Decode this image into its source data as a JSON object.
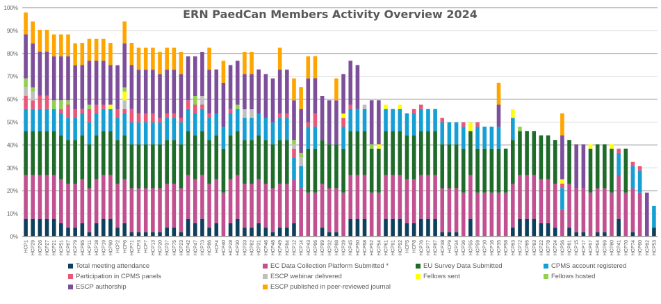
{
  "chart_data": {
    "type": "bar",
    "stacked": true,
    "title": "ERN PaedCan Members Activity Overview 2024",
    "xlabel": "",
    "ylabel": "",
    "ylim": [
      0,
      100
    ],
    "yticks": [
      "0%",
      "10%",
      "20%",
      "30%",
      "40%",
      "50%",
      "60%",
      "70%",
      "80%",
      "90%",
      "100%"
    ],
    "grid": true,
    "legend_position": "bottom",
    "categories": [
      "HCP1",
      "HCP29",
      "HCP26",
      "HCP27",
      "HCP21",
      "HCP51",
      "HCP67",
      "HCP79",
      "HCP85",
      "HCP11",
      "HCP18",
      "HCP19",
      "HCP90",
      "HCP2",
      "HCP6",
      "HCP71",
      "HCP3",
      "HCP7",
      "HCP13",
      "HCP20",
      "HCP37",
      "HCP75",
      "HCP23",
      "HCP42",
      "HCP47",
      "HCP73",
      "HCP86",
      "HCP4",
      "HCP40",
      "HCP28",
      "HCP30",
      "HCP33",
      "HCP82",
      "HCP31",
      "HCP46",
      "HCP48",
      "HCP49",
      "HCP84",
      "HCP12",
      "HCP14",
      "HCP43",
      "HCP66",
      "HCP89",
      "HCP32",
      "HCP88",
      "HCP39",
      "HCP45",
      "HCP50",
      "HCP68",
      "HCP52",
      "HCP54",
      "HCP61",
      "HCP91",
      "HCP92",
      "HCP5",
      "HCP8",
      "HCP76",
      "HCP77",
      "HCP87",
      "HCP38",
      "HCP9",
      "HCP34",
      "HCP36",
      "HCP55",
      "HCP59",
      "HCP10",
      "HCP16",
      "HCP35",
      "HCP58",
      "HCP63",
      "HCP72",
      "HCP65",
      "HCP83",
      "HCP22",
      "HCP78",
      "HCP24",
      "HCP56",
      "HCP81",
      "HCP15",
      "HCP17",
      "HCP57",
      "HCP64",
      "HCP69",
      "HCP80",
      "HCP41",
      "HCP70",
      "HCP74",
      "HCP60",
      "HCP62",
      "HCP53"
    ],
    "series": [
      {
        "name": "Total meeting attendance",
        "color": "#0e3f5c",
        "values": [
          7.7,
          7.7,
          7.7,
          7.7,
          7.7,
          5.8,
          3.8,
          3.8,
          5.8,
          1.9,
          5.8,
          7.7,
          7.7,
          3.8,
          5.8,
          1.9,
          1.9,
          1.9,
          1.9,
          1.9,
          3.8,
          3.8,
          1.9,
          7.7,
          5.8,
          7.7,
          3.8,
          5.8,
          0,
          5.8,
          7.7,
          3.8,
          3.8,
          5.8,
          3.8,
          1.9,
          3.8,
          3.8,
          5.8,
          0,
          0,
          0,
          3.8,
          1.9,
          1.9,
          0,
          7.7,
          7.7,
          7.7,
          0,
          0,
          7.7,
          7.7,
          7.7,
          5.8,
          5.8,
          7.7,
          7.7,
          7.7,
          1.9,
          1.9,
          1.9,
          0,
          7.7,
          0,
          0,
          0,
          0,
          0,
          3.8,
          7.7,
          7.7,
          7.7,
          5.8,
          5.8,
          3.8,
          0,
          3.8,
          1.9,
          1.9,
          0,
          1.9,
          1.9,
          0,
          7.7,
          0,
          1.9,
          0,
          0,
          3.8
        ]
      },
      {
        "name": "EC Data Collection Platform Submitted *",
        "color": "#c0508f",
        "values": [
          19.2,
          19.2,
          19.2,
          19.2,
          19.2,
          19.2,
          19.2,
          19.2,
          19.2,
          19.2,
          19.2,
          19.2,
          19.2,
          19.2,
          19.2,
          19.2,
          19.2,
          19.2,
          19.2,
          19.2,
          19.2,
          19.2,
          19.2,
          19.2,
          19.2,
          19.2,
          19.2,
          19.2,
          19.2,
          19.2,
          19.2,
          19.2,
          19.2,
          19.2,
          19.2,
          19.2,
          19.2,
          19.2,
          19.2,
          21.2,
          19.2,
          19.2,
          19.2,
          19.2,
          19.2,
          19.2,
          19.2,
          19.2,
          19.2,
          19.2,
          19.2,
          19.2,
          19.2,
          19.2,
          19.2,
          19.2,
          19.2,
          19.2,
          19.2,
          19.2,
          19.2,
          19.2,
          19.2,
          19.2,
          19.2,
          19.2,
          19.2,
          19.2,
          19.2,
          19.2,
          19.2,
          19.2,
          19.2,
          19.2,
          19.2,
          19.2,
          11.6,
          19.2,
          19.2,
          19.2,
          19.2,
          19.2,
          19.2,
          19.2,
          19.2,
          19.2,
          19.2,
          19.2,
          0,
          0
        ]
      },
      {
        "name": "EU Survey Data Submitted",
        "color": "#1e6b2a",
        "values": [
          19.2,
          19.2,
          19.2,
          19.2,
          19.2,
          19.2,
          19.2,
          19.2,
          19.2,
          19.2,
          19.2,
          19.2,
          19.2,
          19.2,
          19.2,
          19.2,
          19.2,
          19.2,
          19.2,
          19.2,
          19.2,
          19.2,
          19.2,
          19.2,
          19.2,
          19.2,
          19.2,
          19.2,
          19.2,
          19.2,
          19.2,
          19.2,
          19.2,
          19.2,
          19.2,
          19.2,
          19.2,
          19.2,
          0,
          0,
          19.2,
          19.2,
          19.2,
          19.2,
          19.2,
          19.2,
          19.2,
          19.2,
          19.2,
          19.2,
          19.2,
          19.2,
          19.2,
          19.2,
          19.2,
          19.2,
          19.2,
          19.2,
          19.2,
          19.2,
          19.2,
          19.2,
          19.2,
          19.2,
          19.2,
          19.2,
          19.2,
          19.2,
          19.2,
          19.2,
          19.2,
          19.2,
          19.2,
          19.2,
          19.2,
          19.2,
          0,
          19.2,
          0,
          0,
          19.2,
          19.2,
          19.2,
          19.2,
          0,
          19.2,
          0,
          0,
          0,
          0
        ]
      },
      {
        "name": "CPMS account registered",
        "color": "#159fd4",
        "values": [
          9.6,
          9.6,
          9.6,
          9.6,
          9.6,
          9.6,
          9.6,
          9.6,
          9.6,
          9.6,
          9.6,
          9.6,
          9.6,
          9.6,
          9.6,
          9.6,
          9.6,
          9.6,
          9.6,
          9.6,
          9.6,
          9.6,
          9.6,
          9.6,
          9.6,
          9.6,
          9.6,
          9.6,
          9.6,
          9.6,
          9.6,
          9.6,
          9.6,
          9.6,
          9.6,
          9.6,
          9.6,
          9.6,
          9.6,
          9.6,
          9.6,
          9.6,
          0,
          0,
          0,
          9.6,
          9.6,
          9.6,
          9.6,
          0,
          0,
          9.6,
          9.6,
          9.6,
          9.6,
          9.6,
          9.6,
          9.6,
          9.6,
          9.6,
          9.6,
          9.6,
          9.6,
          0,
          9.6,
          9.6,
          9.6,
          9.6,
          0,
          9.6,
          0,
          0,
          0,
          0,
          0,
          0,
          9.6,
          0,
          0,
          0,
          0,
          0,
          0,
          0,
          9.6,
          0,
          9.6,
          9.6,
          0,
          9.6
        ]
      },
      {
        "name": "Participation in CPMS panels",
        "color": "#e8587a",
        "values": [
          5.8,
          3.8,
          5.8,
          5.8,
          0,
          1.9,
          5.8,
          3.8,
          1.9,
          5.8,
          3.8,
          1.9,
          0,
          3.8,
          1.9,
          5.8,
          3.8,
          3.8,
          3.8,
          1.9,
          1.9,
          1.9,
          1.9,
          3.8,
          3.8,
          1.9,
          1.9,
          0,
          0,
          1.9,
          0,
          0,
          0,
          0,
          0,
          0,
          1.9,
          1.9,
          3.8,
          0,
          1.9,
          5.8,
          0,
          0,
          0,
          3.8,
          1.9,
          0,
          0,
          0,
          0,
          0,
          0,
          0,
          0,
          1.9,
          1.9,
          0,
          0,
          1.9,
          0,
          0,
          1.9,
          0,
          1.9,
          0,
          0,
          0,
          0,
          0,
          0,
          0,
          0,
          0,
          0,
          0,
          1.9,
          0,
          0,
          0,
          0,
          0,
          0,
          0,
          1.9,
          0,
          1.9,
          1.9,
          0,
          0
        ]
      },
      {
        "name": "ESCP webinar delivered",
        "color": "#bfbfbf",
        "values": [
          3.8,
          3.8,
          0,
          0,
          0,
          0,
          0,
          0,
          0,
          0,
          0,
          0,
          0,
          0,
          3.8,
          0,
          0,
          0,
          0,
          0,
          0,
          0,
          0,
          0,
          0,
          3.8,
          0,
          0,
          0,
          0,
          0,
          3.8,
          3.8,
          0,
          0,
          0,
          0,
          0,
          1.9,
          3.8,
          0,
          0,
          0,
          0,
          0,
          0,
          0,
          0,
          1.9,
          0,
          0,
          0,
          0,
          0,
          0,
          0,
          0,
          0,
          0,
          0,
          0,
          0,
          0,
          0,
          0,
          0,
          0,
          0,
          0,
          0,
          0,
          0,
          0,
          0,
          0,
          0,
          0,
          0,
          0,
          0,
          0,
          0,
          0,
          0,
          0,
          0,
          0,
          0,
          0,
          0
        ]
      },
      {
        "name": "Fellows sent",
        "color": "#ffff00",
        "values": [
          0,
          0,
          0,
          0,
          0,
          0,
          0,
          0,
          0,
          0,
          0,
          0,
          1.9,
          0,
          3.8,
          0,
          0,
          0,
          0,
          0,
          0,
          0,
          0,
          0,
          0,
          0,
          0,
          0,
          0,
          0,
          0,
          0,
          0,
          0,
          0,
          0,
          0,
          0,
          0,
          0,
          0,
          0,
          0,
          0,
          0,
          1.9,
          0,
          0,
          0,
          0,
          1.9,
          1.9,
          0,
          1.9,
          0,
          0,
          0,
          0,
          0,
          0,
          0,
          0,
          0,
          3.8,
          0,
          0,
          0,
          0,
          0,
          3.8,
          0,
          0,
          0,
          0,
          0,
          0,
          1.9,
          0,
          0,
          0,
          1.9,
          0,
          0,
          1.9,
          0,
          0,
          0,
          0,
          0,
          0
        ]
      },
      {
        "name": "Fellows hosted",
        "color": "#92d050",
        "values": [
          3.8,
          1.9,
          0,
          0,
          3.8,
          3.8,
          1.9,
          0,
          0,
          1.9,
          0,
          0,
          0,
          0,
          1.9,
          0,
          0,
          0,
          0,
          0,
          0,
          0,
          0,
          0,
          3.8,
          0,
          0,
          0,
          0,
          0,
          1.9,
          0,
          0,
          0,
          0,
          0,
          0,
          0,
          1.9,
          1.9,
          0,
          0,
          0,
          0,
          0,
          0,
          0,
          0,
          0,
          1.9,
          0,
          0,
          0,
          0,
          0,
          0,
          0,
          0,
          0,
          0,
          0,
          0,
          0,
          0,
          0,
          0,
          0,
          0,
          0,
          0,
          1.9,
          0,
          0,
          0,
          0,
          0,
          0,
          0,
          0,
          0,
          0,
          0,
          0,
          0,
          0,
          0,
          0,
          0,
          0,
          0
        ]
      },
      {
        "name": "ESCP authorship",
        "color": "#7d4f9a",
        "values": [
          19.2,
          19.2,
          19.2,
          19.2,
          19.2,
          19.2,
          19.2,
          19.2,
          19.2,
          19.2,
          19.2,
          19.2,
          17.3,
          19.2,
          19.2,
          19.2,
          19.2,
          19.2,
          19.2,
          19.2,
          19.2,
          19.2,
          19.2,
          19.2,
          17.3,
          19.2,
          19.2,
          19.2,
          19.2,
          19.2,
          19.2,
          15.4,
          15.4,
          19.2,
          19.2,
          19.2,
          19.2,
          19.2,
          17.3,
          19.2,
          19.2,
          15.4,
          19.2,
          19.2,
          19.2,
          17.3,
          19.2,
          19.2,
          0,
          19.2,
          19.2,
          0,
          0,
          0,
          0,
          0,
          0,
          0,
          0,
          0,
          0,
          0,
          0,
          0,
          0,
          0,
          0,
          9.6,
          0,
          0,
          0,
          0,
          0,
          0,
          0,
          0,
          19.2,
          0,
          19.2,
          19.2,
          0,
          0,
          0,
          0,
          0,
          0,
          0,
          0,
          19.2,
          0
        ]
      },
      {
        "name": "ESCP published in peer-reviewed journal",
        "color": "#ffa500",
        "values": [
          9.6,
          9.6,
          9.6,
          9.6,
          9.6,
          9.6,
          9.6,
          9.6,
          9.6,
          9.6,
          9.6,
          9.6,
          9.6,
          0,
          9.6,
          9.6,
          9.6,
          9.6,
          9.6,
          9.6,
          9.6,
          9.6,
          9.6,
          0,
          0,
          0,
          9.6,
          0,
          9.6,
          0,
          0,
          9.6,
          9.6,
          0,
          0,
          0,
          9.6,
          0,
          9.6,
          9.6,
          9.6,
          9.6,
          0,
          0,
          9.6,
          0,
          0,
          0,
          0,
          0,
          0,
          0,
          0,
          0,
          0,
          0,
          0,
          0,
          0,
          0,
          0,
          0,
          0,
          0,
          0,
          0,
          0,
          9.6,
          0,
          0,
          0,
          0,
          0,
          0,
          0,
          0,
          9.6,
          0,
          0,
          0,
          0,
          0,
          0,
          0,
          0,
          0,
          0,
          0,
          0,
          0
        ]
      }
    ]
  }
}
